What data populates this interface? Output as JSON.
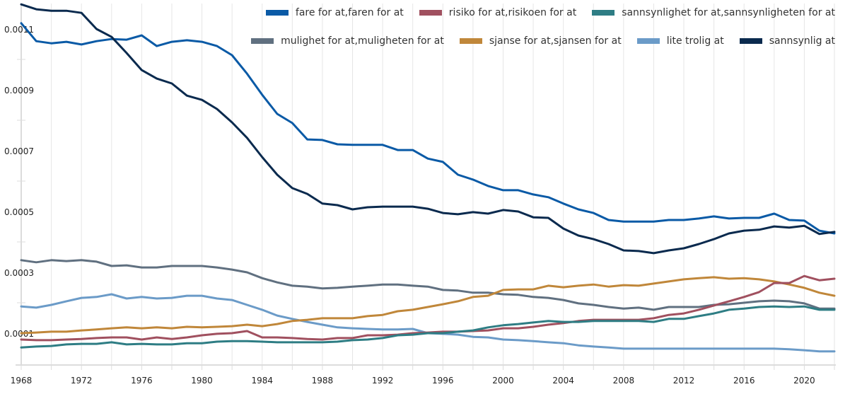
{
  "chart_data": {
    "type": "line",
    "title": "",
    "xlabel": "",
    "ylabel": "",
    "xlim": [
      1968,
      2022
    ],
    "ylim": [
      0,
      0.00117
    ],
    "grid": "vertical",
    "legend_position": "top-right",
    "x_ticks": [
      "1968",
      "1972",
      "1976",
      "1980",
      "1984",
      "1988",
      "1992",
      "1996",
      "2000",
      "2004",
      "2008",
      "2012",
      "2016",
      "2020"
    ],
    "y_ticks": [
      "0.0001",
      "0.0003",
      "0.0005",
      "0.0007",
      "0.0009",
      "0.0011"
    ],
    "x": [
      1968,
      1969,
      1970,
      1971,
      1972,
      1973,
      1974,
      1975,
      1976,
      1977,
      1978,
      1979,
      1980,
      1981,
      1982,
      1983,
      1984,
      1985,
      1986,
      1987,
      1988,
      1989,
      1990,
      1991,
      1992,
      1993,
      1994,
      1995,
      1996,
      1997,
      1998,
      1999,
      2000,
      2001,
      2002,
      2003,
      2004,
      2005,
      2006,
      2007,
      2008,
      2009,
      2010,
      2011,
      2012,
      2013,
      2014,
      2015,
      2016,
      2017,
      2018,
      2019,
      2020,
      2021,
      2022
    ],
    "series": [
      {
        "name": "fare for at,faren for at",
        "color": "#0a5aa6",
        "values": [
          0.001119,
          0.00106,
          0.001053,
          0.001058,
          0.001049,
          0.00106,
          0.001067,
          0.001065,
          0.001079,
          0.001044,
          0.001058,
          0.001063,
          0.001058,
          0.001044,
          0.001014,
          0.000953,
          0.000884,
          0.000821,
          0.000791,
          0.000737,
          0.000735,
          0.000721,
          0.000719,
          0.000719,
          0.000719,
          0.000702,
          0.000702,
          0.000674,
          0.000663,
          0.000621,
          0.000605,
          0.000584,
          0.00057,
          0.00057,
          0.000556,
          0.000547,
          0.000526,
          0.000507,
          0.000495,
          0.000472,
          0.000467,
          0.000467,
          0.000467,
          0.000472,
          0.000472,
          0.000477,
          0.000484,
          0.000477,
          0.000479,
          0.000479,
          0.000493,
          0.000472,
          0.00047,
          0.000437,
          0.000428
        ]
      },
      {
        "name": "risiko for at,risikoen for at",
        "color": "#a0505f",
        "values": [
          7.9e-05,
          7.7e-05,
          7.7e-05,
          7.9e-05,
          8.1e-05,
          8.4e-05,
          8.6e-05,
          8.6e-05,
          7.9e-05,
          8.6e-05,
          8.1e-05,
          8.6e-05,
          9.3e-05,
          9.8e-05,
          0.0001,
          0.000107,
          8.6e-05,
          8.6e-05,
          8.4e-05,
          8.1e-05,
          7.9e-05,
          8.4e-05,
          8.4e-05,
          9.3e-05,
          9.3e-05,
          9.5e-05,
          0.0001,
          0.000102,
          0.000105,
          0.000105,
          0.000107,
          0.000109,
          0.000116,
          0.000116,
          0.000121,
          0.000128,
          0.000133,
          0.00014,
          0.000144,
          0.000144,
          0.000144,
          0.000144,
          0.000149,
          0.00016,
          0.000165,
          0.000177,
          0.000191,
          0.000205,
          0.000219,
          0.000235,
          0.000265,
          0.000265,
          0.000288,
          0.000274,
          0.000279
        ]
      },
      {
        "name": "sannsynlighet for at,sannsynligheten for at",
        "color": "#2e7d84",
        "values": [
          5.3e-05,
          5.6e-05,
          5.8e-05,
          6.3e-05,
          6.5e-05,
          6.5e-05,
          7e-05,
          6.3e-05,
          6.5e-05,
          6.3e-05,
          6.3e-05,
          6.7e-05,
          6.7e-05,
          7.2e-05,
          7.4e-05,
          7.4e-05,
          7.2e-05,
          7e-05,
          7e-05,
          7e-05,
          7e-05,
          7.2e-05,
          7.7e-05,
          7.9e-05,
          8.4e-05,
          9.3e-05,
          9.5e-05,
          0.0001,
          0.0001,
          0.000105,
          0.000109,
          0.000119,
          0.000126,
          0.00013,
          0.000135,
          0.00014,
          0.000137,
          0.000137,
          0.00014,
          0.00014,
          0.00014,
          0.00014,
          0.000137,
          0.000147,
          0.000147,
          0.000156,
          0.000165,
          0.000177,
          0.000181,
          0.000186,
          0.000188,
          0.000186,
          0.000188,
          0.000177,
          0.000177
        ]
      },
      {
        "name": "mulighet for at,muligheten for at",
        "color": "#607080",
        "values": [
          0.00034,
          0.000333,
          0.00034,
          0.000337,
          0.00034,
          0.000335,
          0.000321,
          0.000323,
          0.000316,
          0.000316,
          0.000321,
          0.000321,
          0.000321,
          0.000316,
          0.000309,
          0.0003,
          0.000281,
          0.000267,
          0.000256,
          0.000253,
          0.000247,
          0.000249,
          0.000253,
          0.000256,
          0.00026,
          0.00026,
          0.000256,
          0.000253,
          0.000242,
          0.00024,
          0.000233,
          0.000233,
          0.000228,
          0.000226,
          0.000219,
          0.000216,
          0.000209,
          0.000198,
          0.000193,
          0.000186,
          0.000181,
          0.000184,
          0.000177,
          0.000186,
          0.000186,
          0.000186,
          0.000193,
          0.000195,
          0.0002,
          0.000205,
          0.000207,
          0.000205,
          0.000198,
          0.000181,
          0.000181
        ]
      },
      {
        "name": "sjanse for at,sjansen for at",
        "color": "#c0873a",
        "values": [
          0.0001,
          0.000102,
          0.000105,
          0.000105,
          0.000109,
          0.000112,
          0.000116,
          0.000119,
          0.000116,
          0.000119,
          0.000116,
          0.000121,
          0.000119,
          0.000121,
          0.000123,
          0.000128,
          0.000123,
          0.00013,
          0.00014,
          0.000144,
          0.000149,
          0.000149,
          0.000149,
          0.000156,
          0.00016,
          0.000172,
          0.000177,
          0.000186,
          0.000195,
          0.000205,
          0.000219,
          0.000223,
          0.000242,
          0.000244,
          0.000244,
          0.000256,
          0.000251,
          0.000256,
          0.00026,
          0.000253,
          0.000258,
          0.000256,
          0.000263,
          0.00027,
          0.000277,
          0.000281,
          0.000284,
          0.000279,
          0.000281,
          0.000277,
          0.00027,
          0.00026,
          0.000249,
          0.000233,
          0.000223
        ]
      },
      {
        "name": "lite trolig at",
        "color": "#6b9bc8",
        "values": [
          0.000188,
          0.000184,
          0.000193,
          0.000205,
          0.000216,
          0.000219,
          0.000228,
          0.000214,
          0.000219,
          0.000214,
          0.000216,
          0.000223,
          0.000223,
          0.000214,
          0.000209,
          0.000193,
          0.000177,
          0.000158,
          0.000147,
          0.000137,
          0.000128,
          0.000119,
          0.000116,
          0.000114,
          0.000112,
          0.000112,
          0.000114,
          0.0001,
          9.8e-05,
          9.5e-05,
          8.8e-05,
          8.6e-05,
          7.9e-05,
          7.7e-05,
          7.4e-05,
          7e-05,
          6.7e-05,
          6e-05,
          5.6e-05,
          5.3e-05,
          4.9e-05,
          4.9e-05,
          4.9e-05,
          4.9e-05,
          4.9e-05,
          4.9e-05,
          4.9e-05,
          4.9e-05,
          4.9e-05,
          4.9e-05,
          4.9e-05,
          4.7e-05,
          4.4e-05,
          4e-05,
          4e-05
        ]
      },
      {
        "name": "sannsynlig at",
        "color": "#0a2a4e",
        "values": [
          0.001181,
          0.001165,
          0.00116,
          0.00116,
          0.001153,
          0.0011,
          0.001074,
          0.001021,
          0.000965,
          0.000937,
          0.000921,
          0.000881,
          0.000867,
          0.000837,
          0.000793,
          0.000742,
          0.000679,
          0.000621,
          0.000577,
          0.000558,
          0.000526,
          0.000521,
          0.000507,
          0.000514,
          0.000516,
          0.000516,
          0.000516,
          0.000509,
          0.000495,
          0.000491,
          0.000498,
          0.000493,
          0.000505,
          0.0005,
          0.000481,
          0.000479,
          0.000444,
          0.000421,
          0.000409,
          0.000393,
          0.000372,
          0.00037,
          0.000363,
          0.000372,
          0.000379,
          0.000393,
          0.000409,
          0.000428,
          0.000437,
          0.00044,
          0.000451,
          0.000447,
          0.000453,
          0.000426,
          0.000433
        ]
      }
    ]
  },
  "legend": {
    "rows": [
      [
        0,
        1,
        2
      ],
      [
        3,
        4,
        5,
        6
      ]
    ]
  }
}
